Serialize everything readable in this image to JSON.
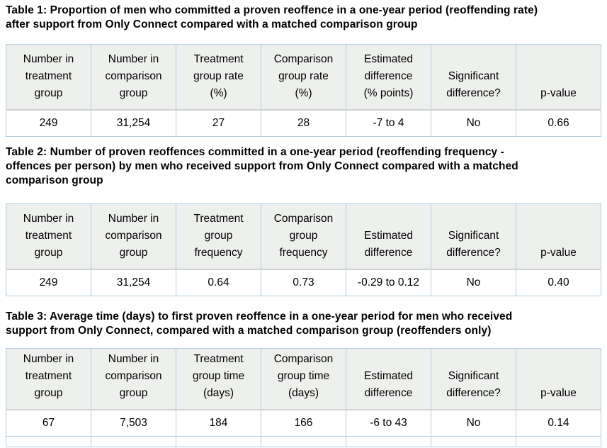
{
  "document": {
    "kind": "report-tables",
    "background_color": "#ffffff",
    "text_color": "#000000",
    "header_cell_color": "#eef0ed",
    "cell_border_color": "#b3cde2",
    "header_separator_color": "#d2d2d2"
  },
  "tables": [
    {
      "name": "Table 1",
      "title_lines": [
        "Table 1: Proportion of men who committed a proven reoffence in a one-year period (reoffending rate)",
        "after support from Only Connect compared with a matched comparison group"
      ],
      "headers": [
        "Number in\ntreatment\ngroup",
        "Number in\ncomparison\ngroup",
        "Treatment\ngroup rate\n(%)",
        "Comparison\ngroup rate\n(%)",
        "Estimated\ndifference\n(% points)",
        "Significant\ndifference?",
        "p-value"
      ],
      "row": [
        "249",
        "31,254",
        "27",
        "28",
        "-7 to 4",
        "No",
        "0.66"
      ]
    },
    {
      "name": "Table 2",
      "title_lines": [
        "Table 2: Number of proven reoffences committed in a one-year period (reoffending frequency -",
        "offences per person) by men who received support from Only Connect compared with a matched",
        "comparison group"
      ],
      "headers": [
        "Number in\ntreatment\ngroup",
        "Number in\ncomparison\ngroup",
        "Treatment\ngroup\nfrequency",
        "Comparison\ngroup\nfrequency",
        "Estimated\ndifference",
        "Significant\ndifference?",
        "p-value"
      ],
      "row": [
        "249",
        "31,254",
        "0.64",
        "0.73",
        "-0.29 to 0.12",
        "No",
        "0.40"
      ]
    },
    {
      "name": "Table 3",
      "title_lines": [
        "Table 3: Average time (days) to first proven reoffence in a one-year period for men who received",
        "support from Only Connect, compared with a matched comparison group (reoffenders only)"
      ],
      "headers": [
        "Number in\ntreatment\ngroup",
        "Number in\ncomparison\ngroup",
        "Treatment\ngroup time\n(days)",
        "Comparison\ngroup time\n(days)",
        "Estimated\ndifference",
        "Significant\ndifference?",
        "p-value"
      ],
      "row": [
        "67",
        "7,503",
        "184",
        "166",
        "-6 to 43",
        "No",
        "0.14"
      ]
    }
  ]
}
